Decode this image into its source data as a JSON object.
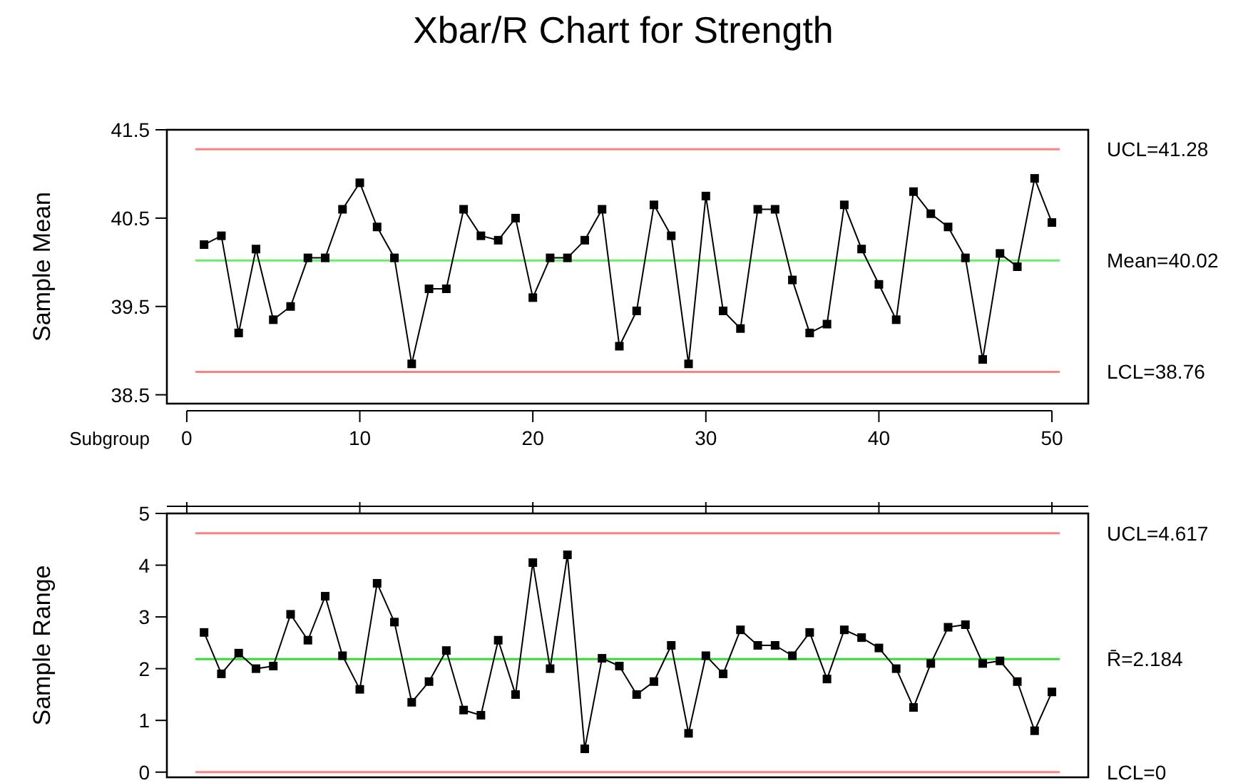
{
  "chart_data": [
    {
      "type": "line",
      "title": "Xbar/R Chart for Strength",
      "xlabel": "Subgroup",
      "ylabel": "Sample Mean",
      "x": [
        1,
        2,
        3,
        4,
        5,
        6,
        7,
        8,
        9,
        10,
        11,
        12,
        13,
        14,
        15,
        16,
        17,
        18,
        19,
        20,
        21,
        22,
        23,
        24,
        25,
        26,
        27,
        28,
        29,
        30,
        31,
        32,
        33,
        34,
        35,
        36,
        37,
        38,
        39,
        40,
        41,
        42,
        43,
        44,
        45,
        46,
        47,
        48,
        49,
        50
      ],
      "series": [
        {
          "color": "#000000",
          "values": [
            40.2,
            40.3,
            39.2,
            40.15,
            39.35,
            39.5,
            40.05,
            40.05,
            40.6,
            40.9,
            40.4,
            40.05,
            38.85,
            39.7,
            39.7,
            40.6,
            40.3,
            40.25,
            40.5,
            39.6,
            40.05,
            40.05,
            40.25,
            40.6,
            39.05,
            39.45,
            40.65,
            40.3,
            38.85,
            40.75,
            39.45,
            39.25,
            40.6,
            40.6,
            39.8,
            39.2,
            39.3,
            40.65,
            40.15,
            39.75,
            39.35,
            40.8,
            40.55,
            40.4,
            40.05,
            38.9,
            40.1,
            39.95,
            40.95,
            40.45
          ]
        }
      ],
      "xlim": [
        -1.15,
        52.1
      ],
      "xticks": [
        0,
        10,
        20,
        30,
        40,
        50
      ],
      "ylim": [
        38.4,
        41.5
      ],
      "yticks": [
        38.5,
        39.5,
        40.5,
        41.5
      ],
      "ref_lines": [
        {
          "axis": "y",
          "value": 41.28,
          "label": "UCL=41.28",
          "color": "#ff8080"
        },
        {
          "axis": "y",
          "value": 40.02,
          "label": "Mean=40.02",
          "color": "#66ee66"
        },
        {
          "axis": "y",
          "value": 38.76,
          "label": "LCL=38.76",
          "color": "#ff8080"
        }
      ],
      "marker": "square",
      "line_style": "solid",
      "grid": false
    },
    {
      "type": "line",
      "ylabel": "Sample Range",
      "x": [
        1,
        2,
        3,
        4,
        5,
        6,
        7,
        8,
        9,
        10,
        11,
        12,
        13,
        14,
        15,
        16,
        17,
        18,
        19,
        20,
        21,
        22,
        23,
        24,
        25,
        26,
        27,
        28,
        29,
        30,
        31,
        32,
        33,
        34,
        35,
        36,
        37,
        38,
        39,
        40,
        41,
        42,
        43,
        44,
        45,
        46,
        47,
        48,
        49,
        50
      ],
      "series": [
        {
          "color": "#000000",
          "values": [
            2.7,
            1.9,
            2.3,
            2.0,
            2.05,
            3.05,
            2.55,
            3.4,
            2.25,
            1.6,
            3.65,
            2.9,
            1.35,
            1.75,
            2.35,
            1.2,
            1.1,
            2.55,
            1.5,
            4.05,
            2.0,
            4.2,
            0.45,
            2.2,
            2.05,
            1.5,
            1.75,
            2.45,
            0.75,
            2.25,
            1.9,
            2.75,
            2.45,
            2.45,
            2.25,
            2.7,
            1.8,
            2.75,
            2.6,
            2.4,
            2.0,
            1.25,
            2.1,
            2.8,
            2.85,
            2.1,
            2.15,
            1.75,
            0.8,
            1.55
          ]
        }
      ],
      "xlim": [
        -1.15,
        52.1
      ],
      "xticks": [
        0,
        10,
        20,
        30,
        40,
        50
      ],
      "ylim": [
        -0.1,
        5.0
      ],
      "yticks": [
        0,
        1,
        2,
        3,
        4,
        5
      ],
      "tick_labels": "y",
      "ref_lines": [
        {
          "axis": "y",
          "value": 4.617,
          "label": "UCL=4.617",
          "color": "#ff8080"
        },
        {
          "axis": "y",
          "value": 2.184,
          "label": "R̄=2.184",
          "color": "#33dd33"
        },
        {
          "axis": "y",
          "value": 0,
          "label": "LCL=0",
          "color": "#ff8080"
        }
      ],
      "marker": "square",
      "line_style": "solid",
      "grid": false
    }
  ]
}
